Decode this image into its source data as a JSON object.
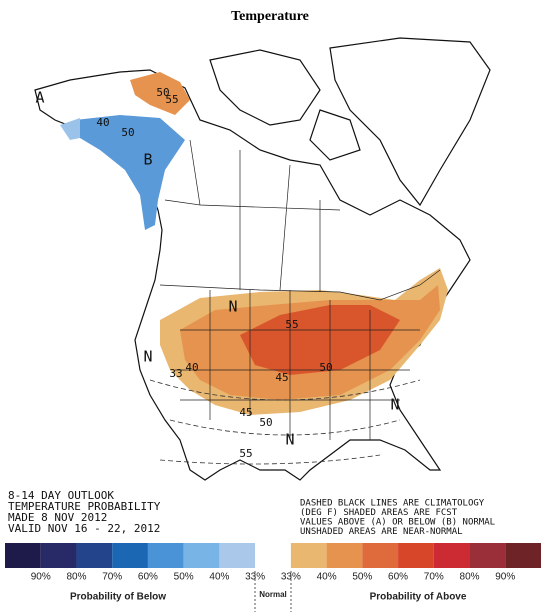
{
  "title": "Temperature",
  "map": {
    "labels": [
      "A",
      "50",
      "55",
      "40",
      "50",
      "B",
      "N",
      "N",
      "N",
      "N",
      "33",
      "40",
      "55",
      "45",
      "50",
      "45",
      "50",
      "55"
    ]
  },
  "notes": {
    "left": [
      "8-14 DAY OUTLOOK",
      "TEMPERATURE PROBABILITY",
      "MADE   8 NOV 2012",
      "VALID  NOV 16 - 22, 2012"
    ],
    "right": [
      "DASHED BLACK LINES ARE CLIMATOLOGY",
      "(DEG F) SHADED AREAS ARE FCST",
      "VALUES ABOVE (A) OR BELOW (B) NORMAL",
      "UNSHADED AREAS ARE NEAR-NORMAL"
    ]
  },
  "legend": {
    "colors": [
      "#1e1a4a",
      "#272a66",
      "#23438a",
      "#1b67b4",
      "#4a93d6",
      "#78b4e6",
      "#a9c8ea",
      "#ffffff",
      "#e9b770",
      "#e5934e",
      "#df6b3c",
      "#d8462a",
      "#cc2b33",
      "#9a2f3a",
      "#6e2327"
    ],
    "labels": [
      "90%",
      "80%",
      "70%",
      "60%",
      "50%",
      "40%",
      "33%",
      "33%",
      "40%",
      "50%",
      "60%",
      "70%",
      "80%",
      "90%"
    ],
    "below_caption": "Probability of Below",
    "normal_caption": "Normal",
    "above_caption": "Probability of Above"
  }
}
